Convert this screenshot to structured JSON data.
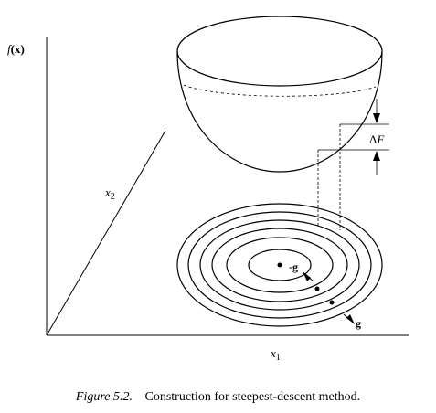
{
  "axes": {
    "vertical": {
      "func": "f",
      "arg": "(x)"
    },
    "depth": {
      "var": "x",
      "sub": "2"
    },
    "horizontal": {
      "var": "x",
      "sub": "1"
    }
  },
  "annotations": {
    "delta_f": {
      "delta": "Δ",
      "var": "F"
    },
    "neg_gradient": "-g",
    "gradient": "g"
  },
  "caption": {
    "label": "Figure 5.2.",
    "text": "Construction for steepest-descent method."
  }
}
